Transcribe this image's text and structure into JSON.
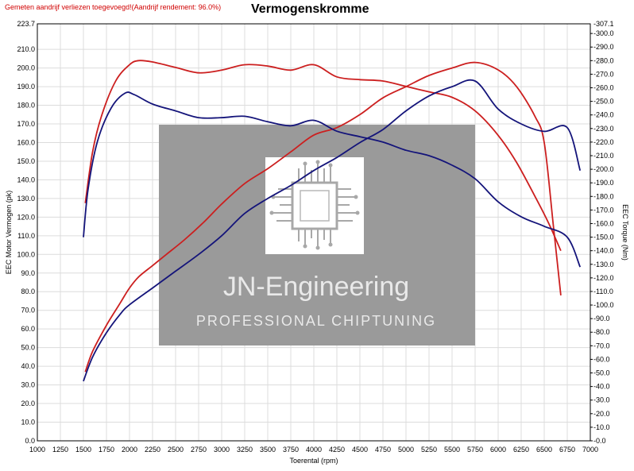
{
  "header": {
    "note": "Gemeten aandrijf verliezen toegevoegd!(Aandrijf rendement: 96.0%)",
    "title": "Vermogenskromme"
  },
  "watermark": {
    "line1": "JN-Engineering",
    "line2": "PROFESSIONAL CHIPTUNING",
    "icon": "circuit-chip-icon"
  },
  "colors": {
    "red": "#cc1f1f",
    "blue": "#14147a"
  },
  "chart_data": {
    "type": "line",
    "xlabel": "Toerental (rpm)",
    "ylabel": "EEC Motor Vermogen (pk)",
    "y2label": "EEC Torque (Nm)",
    "xlim": [
      1000,
      7000
    ],
    "ylim": [
      0,
      223.7
    ],
    "y2lim": [
      0,
      307.1
    ],
    "grid": true,
    "x_ticks": [
      "1000",
      "1250",
      "1500",
      "1750",
      "2000",
      "2250",
      "2500",
      "2750",
      "3000",
      "3250",
      "3500",
      "3750",
      "4000",
      "4250",
      "4500",
      "4750",
      "5000",
      "5250",
      "5500",
      "5750",
      "6000",
      "6250",
      "6500",
      "6750",
      "7000"
    ],
    "y_ticks": [
      "0.0",
      "10.0",
      "20.0",
      "30.0",
      "40.0",
      "50.0",
      "60.0",
      "70.0",
      "80.0",
      "90.0",
      "100.0",
      "110.0",
      "120.0",
      "130.0",
      "140.0",
      "150.0",
      "160.0",
      "170.0",
      "180.0",
      "190.0",
      "200.0",
      "210.0"
    ],
    "y_top_label": "223.7",
    "y2_ticks": [
      "0.0",
      "10.0",
      "20.0",
      "30.0",
      "40.0",
      "50.0",
      "60.0",
      "70.0",
      "80.0",
      "90.0",
      "100.0",
      "110.0",
      "120.0",
      "130.0",
      "140.0",
      "150.0",
      "160.0",
      "170.0",
      "180.0",
      "190.0",
      "200.0",
      "210.0",
      "220.0",
      "230.0",
      "240.0",
      "250.0",
      "260.0",
      "270.0",
      "280.0",
      "290.0",
      "300.0"
    ],
    "y2_top_label": "307.1",
    "series": [
      {
        "color": "#cc1f1f",
        "axis": "left",
        "x": [
          1520,
          1600,
          1750,
          1900,
          2000,
          2100,
          2250,
          2400,
          2600,
          2800,
          3000,
          3250,
          3500,
          3750,
          4000,
          4250,
          4500,
          4750,
          5000,
          5250,
          5500,
          5750,
          6000,
          6200,
          6400,
          6500,
          6600,
          6680
        ],
        "y": [
          37,
          48,
          62,
          74,
          82,
          88,
          94,
          100,
          108,
          117,
          127,
          138,
          146,
          155,
          164,
          168,
          175,
          184,
          190,
          196,
          200,
          203,
          199,
          190,
          174,
          160,
          115,
          78
        ]
      },
      {
        "color": "#cc1f1f",
        "axis": "right",
        "x": [
          1520,
          1600,
          1700,
          1850,
          2000,
          2100,
          2250,
          2500,
          2750,
          3000,
          3250,
          3500,
          3750,
          4000,
          4250,
          4500,
          4750,
          5000,
          5250,
          5500,
          5750,
          6000,
          6200,
          6400,
          6550,
          6680
        ],
        "y": [
          175,
          213,
          240,
          265,
          277,
          280,
          279,
          275,
          271,
          273,
          277,
          276,
          273,
          277,
          268,
          266,
          265,
          261,
          257,
          253,
          243,
          225,
          205,
          180,
          160,
          140
        ]
      },
      {
        "color": "#14147a",
        "axis": "left",
        "x": [
          1500,
          1600,
          1750,
          1900,
          2000,
          2250,
          2500,
          2750,
          3000,
          3250,
          3500,
          3750,
          4000,
          4250,
          4500,
          4750,
          5000,
          5250,
          5500,
          5750,
          6000,
          6250,
          6500,
          6750,
          6890
        ],
        "y": [
          32,
          45,
          58,
          68,
          73,
          82,
          91,
          100,
          110,
          122,
          130,
          137,
          145,
          152,
          160,
          167,
          177,
          185,
          190,
          193,
          178,
          170,
          166,
          168,
          145
        ]
      },
      {
        "color": "#14147a",
        "axis": "right",
        "x": [
          1500,
          1550,
          1650,
          1800,
          1950,
          2050,
          2250,
          2500,
          2750,
          3000,
          3250,
          3500,
          3750,
          4000,
          4250,
          4500,
          4750,
          5000,
          5250,
          5500,
          5750,
          6000,
          6250,
          6500,
          6750,
          6890
        ],
        "y": [
          150,
          185,
          220,
          245,
          256,
          255,
          248,
          243,
          238,
          238,
          239,
          235,
          232,
          236,
          228,
          224,
          220,
          214,
          210,
          203,
          193,
          176,
          165,
          158,
          150,
          128
        ]
      }
    ]
  }
}
